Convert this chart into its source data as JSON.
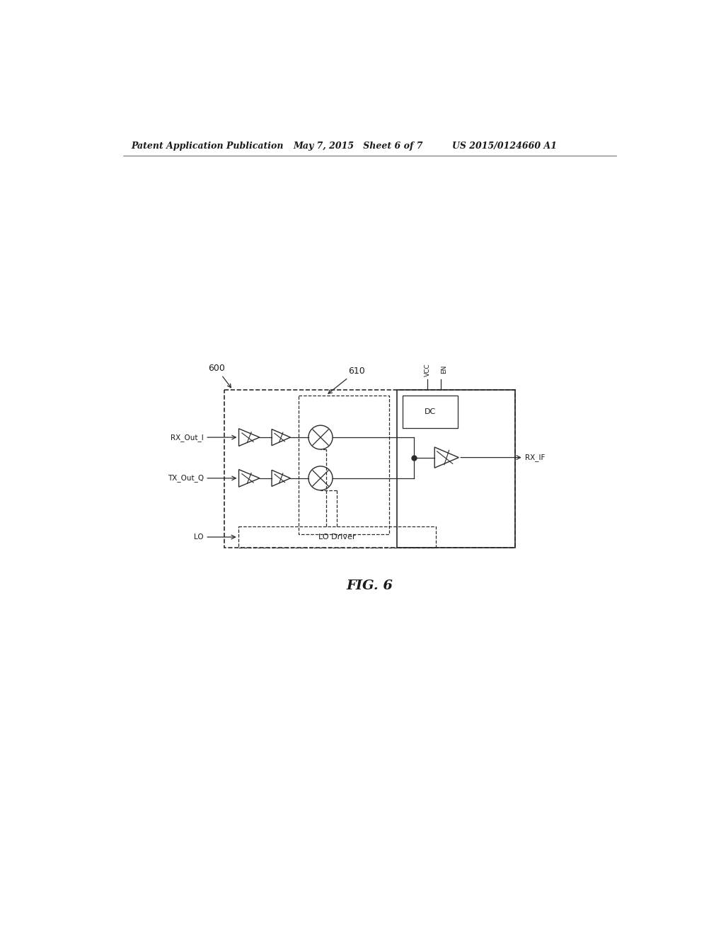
{
  "bg_color": "#ffffff",
  "text_color": "#1a1a1a",
  "line_color": "#2a2a2a",
  "header_left": "Patent Application Publication",
  "header_mid": "May 7, 2015   Sheet 6 of 7",
  "header_right": "US 2015/0124660 A1",
  "fig_label": "FIG. 6",
  "label_600": "600",
  "label_610": "610",
  "label_rx_out_i": "RX_Out_I",
  "label_tx_out_q": "TX_Out_Q",
  "label_lo": "LO",
  "label_rx_if": "RX_IF",
  "label_lo_driver": "LO Driver",
  "label_dc": "DC",
  "label_vcc": "VCC",
  "label_en": "EN"
}
